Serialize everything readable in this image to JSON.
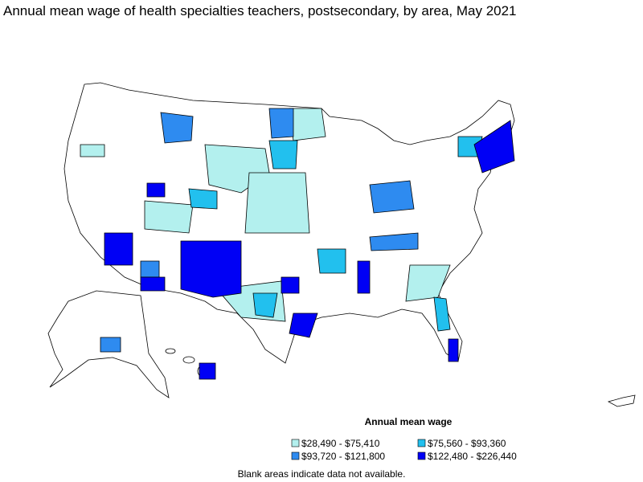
{
  "title": "Annual mean wage of health specialties teachers, postsecondary, by area, May 2021",
  "legend": {
    "title": "Annual mean wage",
    "items": [
      {
        "label": "$28,490 - $75,410",
        "color": "#b3f0ee"
      },
      {
        "label": "$75,560 - $93,360",
        "color": "#22c0ee"
      },
      {
        "label": "$93,720 - $121,800",
        "color": "#2e8bf0"
      },
      {
        "label": "$122,480 - $226,440",
        "color": "#0000f5"
      }
    ]
  },
  "footnote": "Blank areas indicate data not available."
}
